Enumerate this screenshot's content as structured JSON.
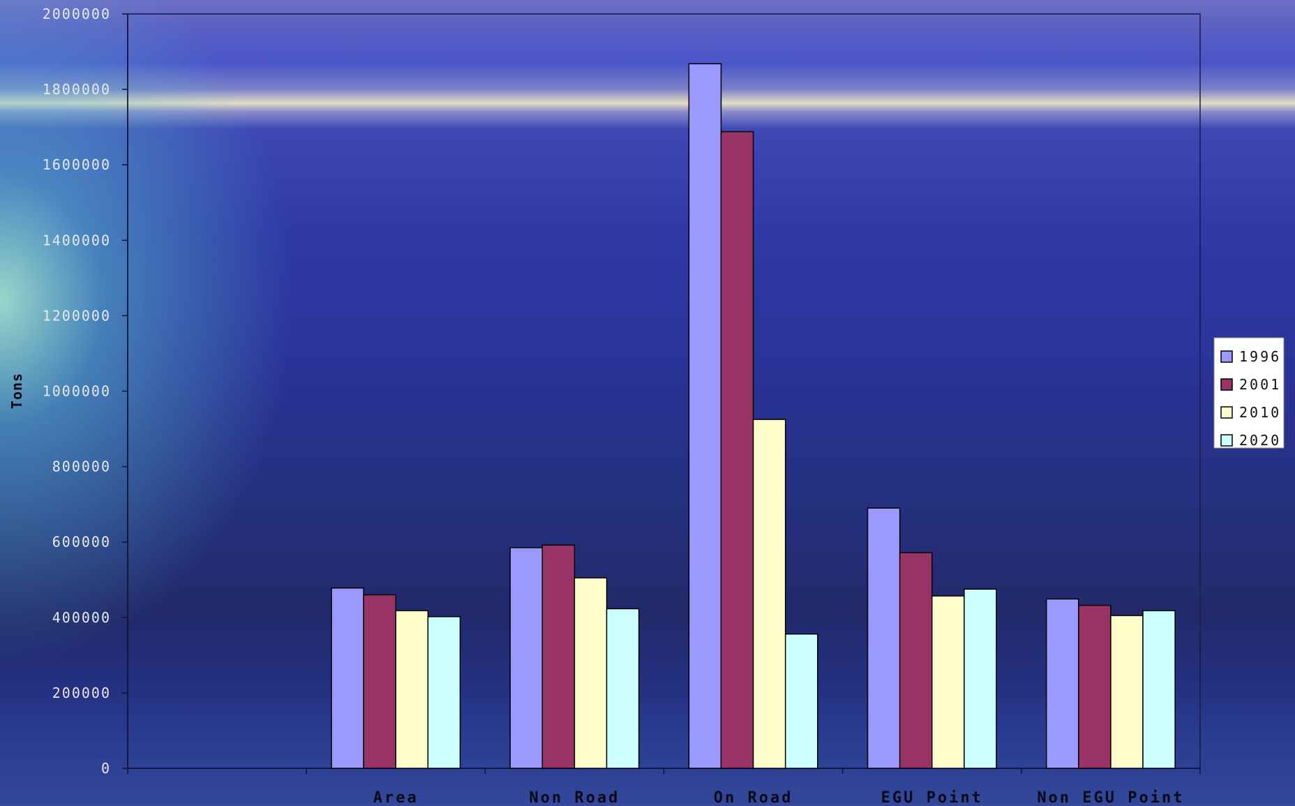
{
  "chart_data": {
    "type": "bar",
    "title": "",
    "xlabel": "",
    "ylabel": "Tons",
    "ylim": [
      0,
      2000000
    ],
    "yticks": [
      0,
      200000,
      400000,
      600000,
      800000,
      1000000,
      1200000,
      1400000,
      1600000,
      1800000,
      2000000
    ],
    "categories": [
      "",
      "Area",
      "Non Road",
      "On Road",
      "EGU Point",
      "Non EGU Point"
    ],
    "series": [
      {
        "name": "1996",
        "color": "#9999ff",
        "values": [
          null,
          478000,
          585000,
          1868000,
          690000,
          449000
        ]
      },
      {
        "name": "2001",
        "color": "#993366",
        "values": [
          null,
          460000,
          592000,
          1688000,
          572000,
          432000
        ]
      },
      {
        "name": "2010",
        "color": "#ffffcc",
        "values": [
          null,
          418000,
          505000,
          925000,
          457000,
          405000
        ]
      },
      {
        "name": "2020",
        "color": "#ccffff",
        "values": [
          null,
          402000,
          423000,
          356000,
          475000,
          418000
        ]
      }
    ],
    "legend": "right",
    "grid": false
  }
}
